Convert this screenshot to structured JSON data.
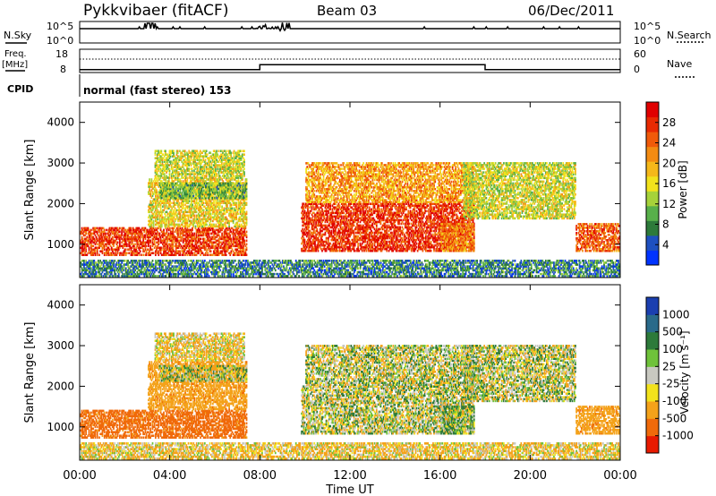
{
  "header": {
    "station": "Pykkvibaer (fitACF)",
    "beam": "Beam 03",
    "date": "06/Dec/2011"
  },
  "status_panel": {
    "nsky_label": "N.Sky",
    "nsky_ticks": [
      "10^5",
      "10^0"
    ],
    "nsearch_label": "N.Search",
    "nsearch_ticks": [
      "10^5",
      "10^0"
    ],
    "freq_label_1": "Freq.",
    "freq_label_2": "[MHz]",
    "freq_ticks": [
      "18",
      "8"
    ],
    "nave_label": "Nave",
    "nave_ticks": [
      "60",
      "0"
    ],
    "cpid_label": "CPID",
    "cpid_text": "normal (fast stereo) 153"
  },
  "power_colorbar": {
    "title": "Power [dB]",
    "ticks": [
      "28",
      "24",
      "20",
      "16",
      "12",
      "8",
      "4"
    ],
    "colors": [
      "#0033ff",
      "#1e50c0",
      "#2d7a3a",
      "#58b04a",
      "#a6d23a",
      "#f2e21c",
      "#f5b81a",
      "#f38b12",
      "#f05a0a",
      "#e82a02",
      "#e00000"
    ]
  },
  "velocity_colorbar": {
    "title": "Velocity [m s⁻¹]",
    "ticks": [
      "1000",
      "500",
      "100",
      "25",
      "-25",
      "-100",
      "-500",
      "-1000"
    ],
    "colors": [
      "#1b3fb0",
      "#2a6a8a",
      "#2d7a3a",
      "#6fc23a",
      "#c8c8c0",
      "#f2e21c",
      "#f4a21a",
      "#f06a0a",
      "#e81a00"
    ]
  },
  "chart_data": {
    "type": "heatmap",
    "xlabel": "Time UT",
    "ylabel": "Slant Range [km]",
    "xticks": [
      "00:00",
      "04:00",
      "08:00",
      "12:00",
      "16:00",
      "20:00",
      "00:00"
    ],
    "yticks": [
      "1000",
      "2000",
      "3000",
      "4000"
    ],
    "xlim_hours": [
      0,
      24
    ],
    "ylim_km": [
      180,
      4500
    ],
    "frequency_mhz": [
      {
        "from": 0,
        "to": 8,
        "value": 9.5
      },
      {
        "from": 8,
        "to": 18,
        "value": 12
      },
      {
        "from": 18,
        "to": 24,
        "value": 9.5
      }
    ],
    "echo_regions": [
      {
        "t0": 0.0,
        "t1": 7.4,
        "r0": 700,
        "r1": 1400,
        "power": 26,
        "velocity": -400
      },
      {
        "t0": 3.0,
        "t1": 7.4,
        "r0": 1400,
        "r1": 2600,
        "power": 16,
        "velocity": -200
      },
      {
        "t0": 3.3,
        "t1": 7.3,
        "r0": 2600,
        "r1": 3300,
        "power": 14,
        "velocity": -60
      },
      {
        "t0": 3.5,
        "t1": 7.4,
        "r0": 2100,
        "r1": 2500,
        "power": 10,
        "velocity": 0
      },
      {
        "t0": 9.8,
        "t1": 17.5,
        "r0": 800,
        "r1": 2000,
        "power": 27,
        "velocity": 0
      },
      {
        "t0": 10.0,
        "t1": 17.5,
        "r0": 2000,
        "r1": 3000,
        "power": 20,
        "velocity": 0
      },
      {
        "t0": 17.0,
        "t1": 22.0,
        "r0": 1600,
        "r1": 3000,
        "power": 14,
        "velocity": 0
      },
      {
        "t0": 16.0,
        "t1": 17.5,
        "r0": 800,
        "r1": 1500,
        "power": 22,
        "velocity": 40
      },
      {
        "t0": 22.0,
        "t1": 24.0,
        "r0": 800,
        "r1": 1500,
        "power": 24,
        "velocity": -200
      },
      {
        "t0": 0.0,
        "t1": 24.0,
        "r0": 180,
        "r1": 600,
        "power": 6,
        "velocity": -60
      }
    ]
  }
}
